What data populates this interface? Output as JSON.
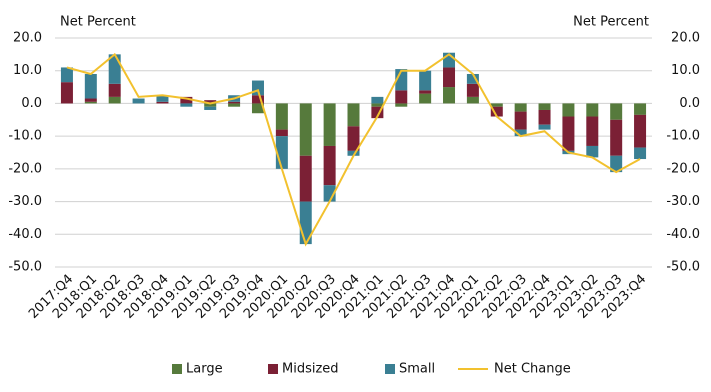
{
  "chart_data": {
    "type": "stacked-bar-line",
    "ylabel": "Net Percent",
    "y2label": "Net Percent",
    "categories": [
      "2017:Q4",
      "2018:Q1",
      "2018:Q2",
      "2018:Q3",
      "2018:Q4",
      "2019:Q1",
      "2019:Q2",
      "2019:Q3",
      "2019:Q4",
      "2020:Q1",
      "2020:Q2",
      "2020:Q3",
      "2020:Q4",
      "2021:Q1",
      "2021:Q2",
      "2021:Q3",
      "2021:Q4",
      "2022:Q1",
      "2022:Q2",
      "2022:Q3",
      "2022:Q4",
      "2023:Q1",
      "2023:Q2",
      "2023:Q3",
      "2023:Q4"
    ],
    "series": [
      {
        "name": "Large",
        "color": "#567a3c",
        "values": [
          0,
          0.5,
          2,
          0,
          0,
          0,
          -1,
          -1,
          -3,
          -8,
          -16,
          -13,
          -7,
          -1,
          -1,
          3,
          5,
          2,
          -1,
          -2.5,
          -2,
          -4,
          -4,
          -5,
          -3.5
        ]
      },
      {
        "name": "Midsized",
        "color": "#7b2035",
        "values": [
          6.5,
          1,
          4,
          0,
          0.5,
          2,
          1,
          0.5,
          2.5,
          -2,
          -14,
          -12,
          -7.5,
          -3.5,
          4,
          1,
          6,
          4,
          -3,
          -5.5,
          -4.5,
          -10.5,
          -9,
          -11,
          -10
        ]
      },
      {
        "name": "Small",
        "color": "#3a7f93",
        "values": [
          4.5,
          7.5,
          9,
          1.5,
          2,
          -1,
          -1,
          2,
          4.5,
          -10,
          -13,
          -5,
          -1.5,
          2,
          6.5,
          6,
          4.5,
          3,
          0,
          -2,
          -1.5,
          -1,
          -3.5,
          -5,
          -3.5
        ]
      },
      {
        "name": "Net Change",
        "color": "#f2c12e",
        "axis": "y2",
        "values": [
          11,
          9,
          15,
          2,
          2.5,
          1.5,
          0,
          1.5,
          4,
          -20,
          -43,
          -30,
          -16,
          -4,
          10,
          10,
          15,
          9,
          -4,
          -10,
          -8.5,
          -15,
          -16.5,
          -21,
          -17
        ]
      }
    ],
    "ylim": [
      -50,
      20
    ],
    "yticks": [
      {
        "value": -50,
        "label": "-50.0"
      },
      {
        "value": -40,
        "label": "-40.0"
      },
      {
        "value": -30,
        "label": "-30.0"
      },
      {
        "value": -20,
        "label": "-20.0"
      },
      {
        "value": -10,
        "label": "-10.0"
      },
      {
        "value": 0,
        "label": "0.0"
      },
      {
        "value": 10,
        "label": "10.0"
      },
      {
        "value": 20,
        "label": "20.0"
      }
    ],
    "y2lim": [
      -50,
      20
    ],
    "y2ticks": [
      {
        "value": -50,
        "label": "-50.0"
      },
      {
        "value": -40,
        "label": "-40.0"
      },
      {
        "value": -30,
        "label": "-30.0"
      },
      {
        "value": -20,
        "label": "-20.0"
      },
      {
        "value": -10,
        "label": "-10.0"
      },
      {
        "value": 0,
        "label": "0.0"
      },
      {
        "value": 10,
        "label": "10.0"
      },
      {
        "value": 20,
        "label": "20.0"
      }
    ],
    "grid": true
  }
}
